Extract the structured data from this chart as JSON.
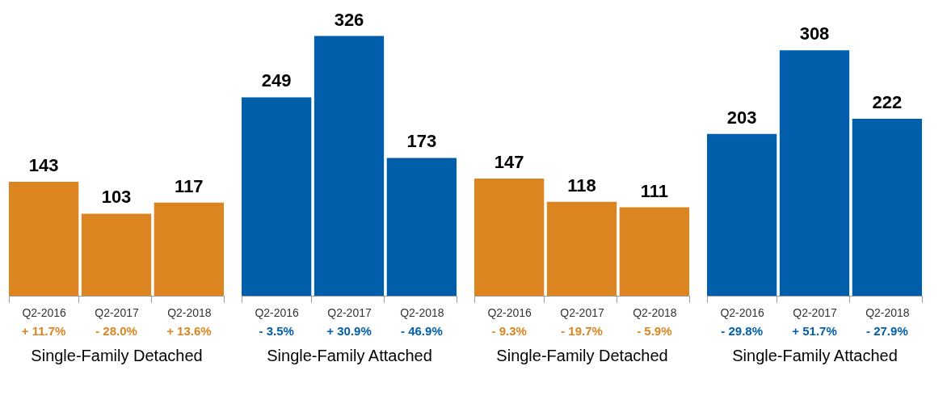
{
  "chart_data": [
    {
      "type": "bar",
      "categories": [
        "Q2-2016",
        "Q2-2017",
        "Q2-2018"
      ],
      "values": [
        143,
        103,
        117
      ],
      "color": "#dc8520",
      "data_labels": true,
      "xlabel": "Single-Family Detached",
      "annotations": [
        "+ 11.7%",
        "- 28.0%",
        "+ 13.6%"
      ]
    },
    {
      "type": "bar",
      "categories": [
        "Q2-2016",
        "Q2-2017",
        "Q2-2018"
      ],
      "values": [
        249,
        326,
        173
      ],
      "color": "#005eab",
      "data_labels": true,
      "xlabel": "Single-Family Attached",
      "annotations": [
        "- 3.5%",
        "+ 30.9%",
        "- 46.9%"
      ]
    },
    {
      "type": "bar",
      "categories": [
        "Q2-2016",
        "Q2-2017",
        "Q2-2018"
      ],
      "values": [
        147,
        118,
        111
      ],
      "color": "#dc8520",
      "data_labels": true,
      "xlabel": "Single-Family Detached",
      "annotations": [
        "- 9.3%",
        "- 19.7%",
        "- 5.9%"
      ]
    },
    {
      "type": "bar",
      "categories": [
        "Q2-2016",
        "Q2-2017",
        "Q2-2018"
      ],
      "values": [
        203,
        308,
        222
      ],
      "color": "#005eab",
      "data_labels": true,
      "xlabel": "Single-Family Attached",
      "annotations": [
        "- 29.8%",
        "+ 51.7%",
        "- 27.9%"
      ]
    }
  ]
}
